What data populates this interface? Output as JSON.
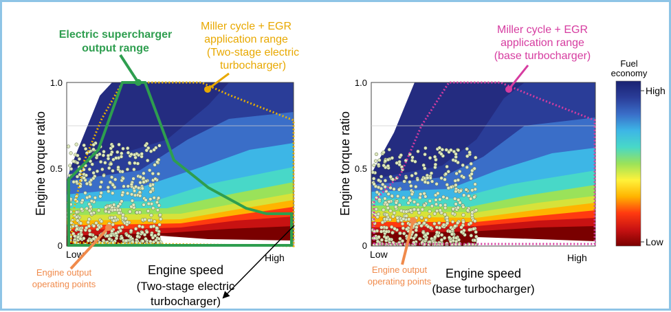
{
  "colors": {
    "border": "#8ec4e6",
    "green_outline": "#2e9e4f",
    "green_label": "#2e9e4f",
    "yellow_label": "#e8a800",
    "magenta_label": "#d63ca0",
    "orange_label": "#f08a4b",
    "arrow_black": "#000000",
    "points_fill": "#dfe8bf",
    "points_stroke": "#5c6b4a"
  },
  "colorbar": {
    "title_line1": "Fuel",
    "title_line2": "economy",
    "high_label": "High",
    "low_label": "Low",
    "stops": [
      "#7a0000",
      "#c81212",
      "#ff3a10",
      "#ffb400",
      "#fff23a",
      "#9ae25a",
      "#48d8c8",
      "#3db6e6",
      "#3a6ec8",
      "#2a3d98",
      "#1a2272"
    ]
  },
  "chart_data": [
    {
      "type": "heatmap",
      "title": "",
      "xlabel": "Engine speed",
      "xlabel_sub1": "(Two-stage electric",
      "xlabel_sub2": "turbocharger)",
      "ylabel": "Engine torque ratio",
      "x_tick_low": "Low",
      "x_tick_high": "High",
      "y_ticks": [
        "0",
        "0.5",
        "1.0"
      ],
      "ylim": [
        0,
        1.0
      ],
      "annotations": {
        "supercharger_line1": "Electric supercharger",
        "supercharger_line2": "output range",
        "miller_line1": "Miller cycle + EGR",
        "miller_line2": "application range",
        "miller_line3": "(Two-stage electric",
        "miller_line4": "turbocharger)",
        "operating_line1": "Engine output",
        "operating_line2": "operating points"
      }
    },
    {
      "type": "heatmap",
      "title": "",
      "xlabel": "Engine speed",
      "xlabel_sub1": "(base turbocharger)",
      "ylabel": "Engine torque ratio",
      "x_tick_low": "Low",
      "x_tick_high": "High",
      "y_ticks": [
        "0",
        "0.5",
        "1.0"
      ],
      "ylim": [
        0,
        1.0
      ],
      "annotations": {
        "miller_line1": "Miller cycle + EGR",
        "miller_line2": "application range",
        "miller_line3": "(base turbocharger)",
        "operating_line1": "Engine output",
        "operating_line2": "operating points"
      }
    }
  ]
}
